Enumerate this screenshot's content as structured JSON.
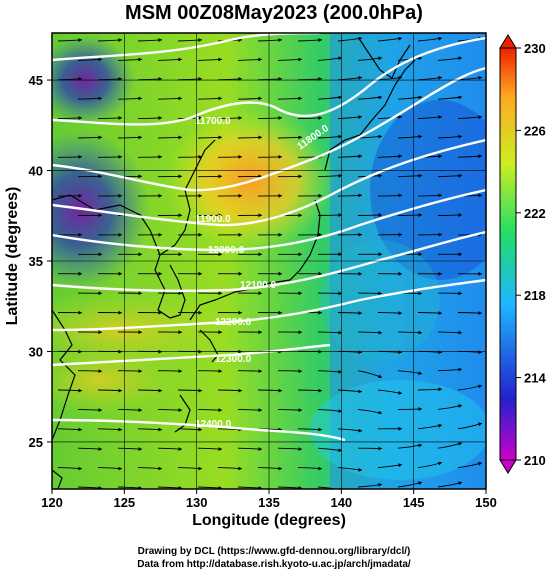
{
  "title": "MSM 00Z08May2023 (200.0hPa)",
  "ylabel": "Latitude (degrees)",
  "xlabel": "Longitude (degrees)",
  "credit_line1": "Drawing by DCL (https://www.gfd-dennou.org/library/dcl/)",
  "credit_line2": "Data from http://database.rish.kyoto-u.ac.jp/arch/jmadata/",
  "map": {
    "lon_range": [
      120,
      150
    ],
    "lat_range": [
      22.4,
      47.6
    ],
    "lon_ticks": [
      "120",
      "125",
      "130",
      "135",
      "140",
      "145",
      "150"
    ],
    "lat_ticks": [
      "25",
      "30",
      "35",
      "40",
      "45"
    ],
    "grid": true
  },
  "colorbar": {
    "min": 210,
    "max": 230,
    "labels": [
      "230",
      "226",
      "222",
      "218",
      "214",
      "210"
    ],
    "colors": [
      "#cc00cc",
      "#2222cc",
      "#1fb7ff",
      "#22dd66",
      "#ccee22",
      "#ffaa22",
      "#ee2200"
    ]
  },
  "contours": [
    {
      "label": "11700.0"
    },
    {
      "label": "11800.0"
    },
    {
      "label": "11900.0"
    },
    {
      "label": "12000.0"
    },
    {
      "label": "12100.0"
    },
    {
      "label": "12200.0"
    },
    {
      "label": "12300.0"
    },
    {
      "label": "12400.0"
    }
  ]
}
